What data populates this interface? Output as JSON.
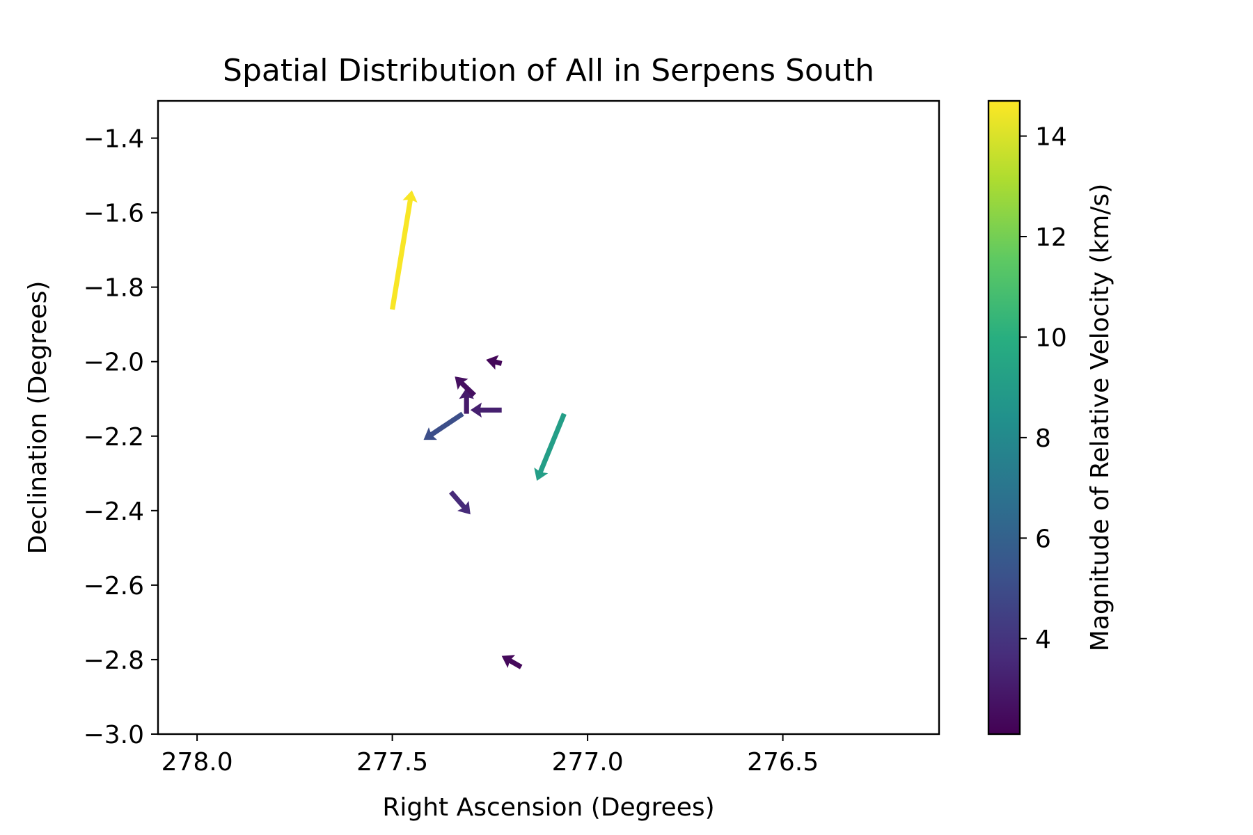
{
  "chart_data": {
    "type": "quiver",
    "title": "Spatial Distribution of All in Serpens South",
    "xlabel": "Right Ascension (Degrees)",
    "ylabel": "Declination (Degrees)",
    "xlim": [
      278.1,
      276.1
    ],
    "ylim": [
      -3.0,
      -1.3
    ],
    "x_inverted": true,
    "xticks": [
      278.0,
      277.5,
      277.0,
      276.5
    ],
    "xtick_labels": [
      "278.0",
      "277.5",
      "277.0",
      "276.5"
    ],
    "yticks": [
      -1.4,
      -1.6,
      -1.8,
      -2.0,
      -2.2,
      -2.4,
      -2.6,
      -2.8,
      -3.0
    ],
    "ytick_labels": [
      "−1.4",
      "−1.6",
      "−1.8",
      "−2.0",
      "−2.2",
      "−2.4",
      "−2.6",
      "−2.8",
      "−3.0"
    ],
    "grid": false,
    "colormap": "viridis",
    "colorbar": {
      "label": "Magnitude of Relative Velocity (km/s)",
      "range": [
        2.1,
        14.7
      ],
      "ticks": [
        4,
        6,
        8,
        10,
        12,
        14
      ],
      "tick_labels": [
        "4",
        "6",
        "8",
        "10",
        "12",
        "14"
      ]
    },
    "vectors": [
      {
        "x": 277.5,
        "y": -1.86,
        "dx": -0.05,
        "dy": 0.32,
        "magnitude": 14.6
      },
      {
        "x": 277.06,
        "y": -2.14,
        "dx": 0.07,
        "dy": -0.18,
        "magnitude": 9.1
      },
      {
        "x": 277.32,
        "y": -2.14,
        "dx": 0.1,
        "dy": -0.07,
        "magnitude": 5.1
      },
      {
        "x": 277.22,
        "y": -2.13,
        "dx": 0.08,
        "dy": 0.0,
        "magnitude": 3.2
      },
      {
        "x": 277.31,
        "y": -2.14,
        "dx": 0.0,
        "dy": 0.07,
        "magnitude": 3.0
      },
      {
        "x": 277.29,
        "y": -2.09,
        "dx": 0.05,
        "dy": 0.05,
        "magnitude": 2.6
      },
      {
        "x": 277.22,
        "y": -2.005,
        "dx": 0.04,
        "dy": 0.01,
        "magnitude": 2.3
      },
      {
        "x": 277.35,
        "y": -2.35,
        "dx": -0.05,
        "dy": -0.06,
        "magnitude": 3.6
      },
      {
        "x": 277.17,
        "y": -2.82,
        "dx": 0.05,
        "dy": 0.03,
        "magnitude": 2.4
      }
    ]
  }
}
